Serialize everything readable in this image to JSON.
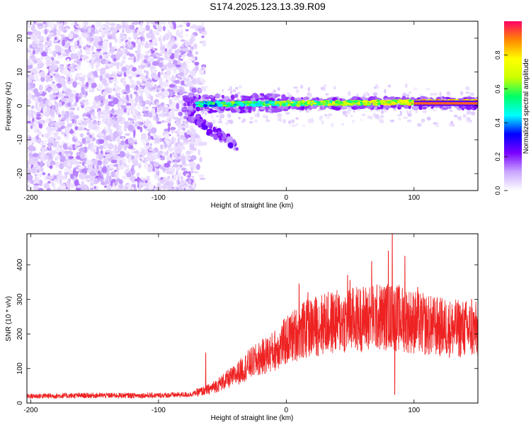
{
  "figure": {
    "title": "S174.2025.123.13.39.R09"
  },
  "chart_data": [
    {
      "type": "heatmap",
      "xlabel": "Height of straight line (km)",
      "ylabel": "Frequency (Hz)",
      "xlim": [
        -203,
        150
      ],
      "ylim": [
        -25,
        25
      ],
      "xticks": [
        -200,
        -100,
        0,
        100
      ],
      "yticks": [
        -20,
        -10,
        0,
        10,
        20
      ],
      "colorbar": {
        "label": "Normalized spectral amplitude",
        "range": [
          0,
          1
        ],
        "ticks": [
          "0.0",
          "0.2",
          "0.4",
          "0.6",
          "0.8"
        ],
        "stops": [
          "#ffffff",
          "#c9a6ff",
          "#7a00ff",
          "#0000ff",
          "#00ffff",
          "#00ff66",
          "#ccff00",
          "#ffff00",
          "#ff8800",
          "#ff0066"
        ]
      },
      "regions": [
        {
          "name": "noise",
          "x_range": [
            -203,
            -72
          ],
          "freq_range": [
            -25,
            25
          ],
          "amplitude_range": [
            0.0,
            0.15
          ]
        },
        {
          "name": "lower branch",
          "x_range": [
            -80,
            -38
          ],
          "freq_range": [
            -13,
            -2
          ],
          "amplitude_range": [
            0.1,
            0.25
          ]
        },
        {
          "name": "tone",
          "x_range": [
            -80,
            150
          ],
          "freq_center": [
            0.5,
            1.2
          ],
          "amplitude_range": [
            0.15,
            0.95
          ]
        }
      ]
    },
    {
      "type": "line",
      "xlabel": "Height of straight line (km)",
      "ylabel": "SNR (10 * v/v)",
      "xlim": [
        -203,
        150
      ],
      "ylim": [
        0,
        490
      ],
      "xticks": [
        -200,
        -100,
        0,
        100
      ],
      "yticks": [
        0,
        100,
        200,
        300,
        400
      ],
      "color": "#ee2222",
      "envelope": {
        "x": [
          -203,
          -150,
          -100,
          -75,
          -60,
          -50,
          -40,
          -30,
          -20,
          -10,
          0,
          10,
          20,
          30,
          40,
          50,
          60,
          70,
          80,
          90,
          100,
          110,
          120,
          130,
          140,
          150
        ],
        "y": [
          20,
          22,
          22,
          25,
          40,
          60,
          80,
          110,
          130,
          150,
          180,
          205,
          220,
          230,
          235,
          240,
          245,
          248,
          250,
          245,
          235,
          225,
          220,
          215,
          215,
          210
        ]
      },
      "spikes": [
        {
          "x": -63,
          "y": 145
        },
        {
          "x": 10,
          "y": 345
        },
        {
          "x": 17,
          "y": 320
        },
        {
          "x": 48,
          "y": 370
        },
        {
          "x": 50,
          "y": 355
        },
        {
          "x": 67,
          "y": 410
        },
        {
          "x": 80,
          "y": 440
        },
        {
          "x": 83,
          "y": 490
        },
        {
          "x": 85,
          "y": 25
        },
        {
          "x": 93,
          "y": 425
        },
        {
          "x": 103,
          "y": 335
        },
        {
          "x": 145,
          "y": 300
        }
      ]
    }
  ]
}
